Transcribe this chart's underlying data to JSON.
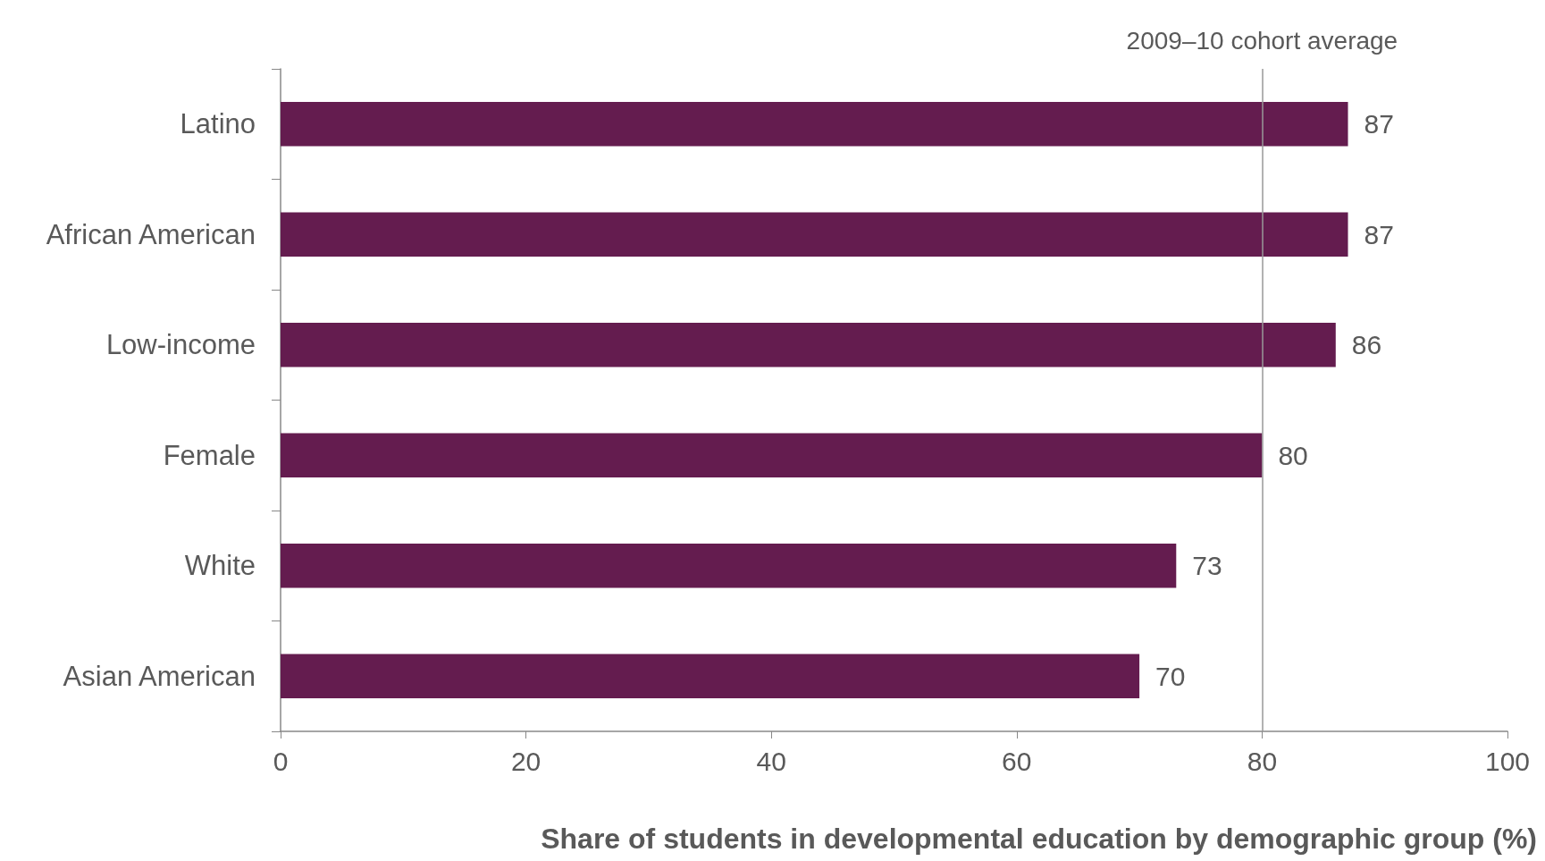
{
  "chart_data": {
    "type": "bar",
    "orientation": "horizontal",
    "xlabel": "Share of students in developmental education by demographic group (%)",
    "categories": [
      "Latino",
      "African American",
      "Low-income",
      "Female",
      "White",
      "Asian American"
    ],
    "values": [
      87,
      87,
      86,
      80,
      73,
      70
    ],
    "color": "#641c4f",
    "data_labels": true,
    "xlim": [
      0,
      100
    ],
    "xticks": [
      0,
      20,
      40,
      60,
      80,
      100
    ],
    "grid": false,
    "ref_lines": [
      {
        "axis": "x",
        "value": 80,
        "label": "2009–10 cohort average",
        "color": "#999999"
      }
    ]
  }
}
